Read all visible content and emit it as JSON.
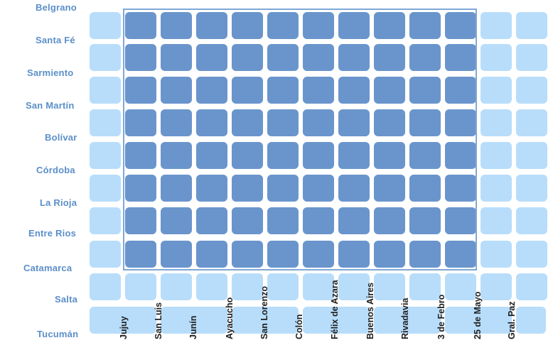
{
  "map": {
    "rows": [
      "Belgrano",
      "Santa Fé",
      "Sarmiento",
      "San Martín",
      "Bolívar",
      "Córdoba",
      "La Rioja",
      "Entre Rios",
      "Catamarca",
      "Salta",
      "Tucumán"
    ],
    "columns": [
      "Jujuy",
      "San Luis",
      "Junín",
      "Ayacucho",
      "San Lorenzo",
      "Colón",
      "Félix de Azara",
      "Buenos Aires",
      "Rivadavia",
      "3 de Febro",
      "25 de Mayo",
      "Gral. Paz"
    ],
    "colors": {
      "block_light": "#b8ddfb",
      "block_dark": "#6a95cc",
      "frame": "#7fa8d6",
      "row_label": "#5b8fc9",
      "column_label": "#1f1f1f"
    },
    "highlighted_area": {
      "rows": [
        "Belgrano",
        "Santa Fé",
        "Sarmiento",
        "San Martín",
        "Bolívar",
        "Córdoba",
        "La Rioja",
        "Entre Rios"
      ],
      "columns_between": [
        "Jujuy",
        "25 de Mayo"
      ]
    }
  }
}
